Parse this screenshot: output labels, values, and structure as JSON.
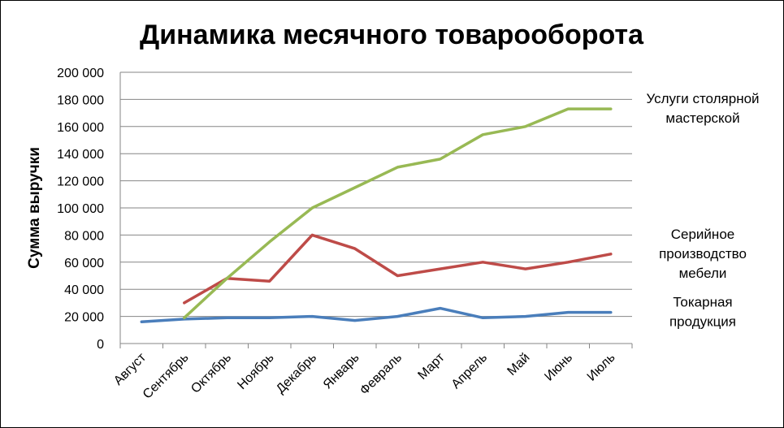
{
  "chart_data": {
    "type": "line",
    "title": "Динамика месячного товарооборота",
    "xlabel": "",
    "ylabel": "Сумма выручки",
    "ylim": [
      0,
      200000
    ],
    "y_ticks": [
      "0",
      "20 000",
      "40 000",
      "60 000",
      "80 000",
      "100 000",
      "120 000",
      "140 000",
      "160 000",
      "180 000",
      "200 000"
    ],
    "grid": "horizontal",
    "legend": "right, labels beside line ends",
    "categories": [
      "Август",
      "Сентябрь",
      "Октябрь",
      "Ноябрь",
      "Декабрь",
      "Январь",
      "Февраль",
      "Март",
      "Апрель",
      "Май",
      "Июнь",
      "Июль"
    ],
    "series": [
      {
        "name": "Токарная продукция",
        "name_lines": [
          "Токарная",
          "продукция"
        ],
        "color": "#4a7ebb",
        "values": [
          16000,
          18000,
          19000,
          19000,
          20000,
          17000,
          20000,
          26000,
          19000,
          20000,
          23000,
          23000
        ]
      },
      {
        "name": "Серийное производство мебели",
        "name_lines": [
          "Серийное",
          "производство",
          "мебели"
        ],
        "color": "#be4b48",
        "values": [
          null,
          30000,
          48000,
          46000,
          80000,
          70000,
          50000,
          55000,
          60000,
          55000,
          60000,
          66000
        ]
      },
      {
        "name": "Услуги столярной мастерской",
        "name_lines": [
          "Услуги столярной",
          "мастерской"
        ],
        "color": "#98b954",
        "values": [
          null,
          19000,
          48000,
          75000,
          100000,
          115000,
          130000,
          136000,
          154000,
          160000,
          173000,
          173000
        ]
      }
    ]
  }
}
